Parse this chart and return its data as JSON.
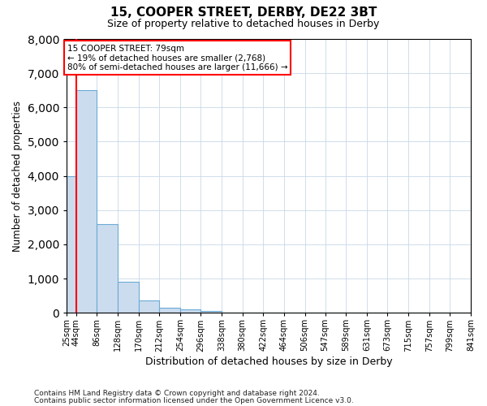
{
  "title": "15, COOPER STREET, DERBY, DE22 3BT",
  "subtitle": "Size of property relative to detached houses in Derby",
  "xlabel": "Distribution of detached houses by size in Derby",
  "ylabel": "Number of detached properties",
  "bar_color": "#ccdcef",
  "bar_edge_color": "#6aaad4",
  "annotation_line1": "15 COOPER STREET: 79sqm",
  "annotation_line2": "← 19% of detached houses are smaller (2,768)",
  "annotation_line3": "80% of semi-detached houses are larger (11,666) →",
  "bins": [
    25,
    44,
    86,
    128,
    170,
    212,
    254,
    296,
    338,
    380,
    422,
    464,
    506,
    547,
    589,
    631,
    673,
    715,
    757,
    799,
    841
  ],
  "bin_labels": [
    "25sqm",
    "44sqm",
    "86sqm",
    "128sqm",
    "170sqm",
    "212sqm",
    "254sqm",
    "296sqm",
    "338sqm",
    "380sqm",
    "422sqm",
    "464sqm",
    "506sqm",
    "547sqm",
    "589sqm",
    "631sqm",
    "673sqm",
    "715sqm",
    "757sqm",
    "799sqm",
    "841sqm"
  ],
  "values": [
    4000,
    6500,
    2600,
    900,
    370,
    140,
    90,
    60,
    0,
    0,
    0,
    0,
    0,
    0,
    0,
    0,
    0,
    0,
    0,
    0
  ],
  "ylim": [
    0,
    8000
  ],
  "yticks": [
    0,
    1000,
    2000,
    3000,
    4000,
    5000,
    6000,
    7000,
    8000
  ],
  "red_line_x": 44,
  "footnote1": "Contains HM Land Registry data © Crown copyright and database right 2024.",
  "footnote2": "Contains public sector information licensed under the Open Government Licence v3.0."
}
